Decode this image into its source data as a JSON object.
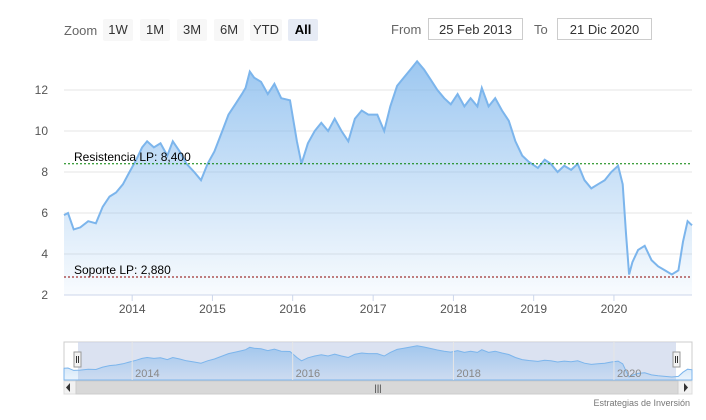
{
  "toolbar": {
    "zoom_label": "Zoom",
    "buttons": [
      {
        "label": "1W",
        "active": false
      },
      {
        "label": "1M",
        "active": false
      },
      {
        "label": "3M",
        "active": false
      },
      {
        "label": "6M",
        "active": false
      },
      {
        "label": "YTD",
        "active": false
      },
      {
        "label": "All",
        "active": true
      }
    ],
    "from_label": "From",
    "from_value": "25 Feb 2013",
    "to_label": "To",
    "to_value": "21 Dic 2020"
  },
  "chart_data": {
    "type": "area",
    "title": "",
    "xlabel": "",
    "ylabel": "",
    "x_range": [
      "2013-02-25",
      "2020-12-21"
    ],
    "ylim": [
      2,
      14
    ],
    "y_ticks": [
      2,
      4,
      6,
      8,
      10,
      12
    ],
    "x_ticks": [
      "2014",
      "2015",
      "2016",
      "2017",
      "2018",
      "2019",
      "2020"
    ],
    "grid": "horizontal",
    "series": [
      {
        "color": "#7cb5ec",
        "points": [
          [
            "2013-02-25",
            5.9
          ],
          [
            "2013-03-15",
            6.0
          ],
          [
            "2013-04-10",
            5.2
          ],
          [
            "2013-05-10",
            5.3
          ],
          [
            "2013-06-15",
            5.6
          ],
          [
            "2013-07-20",
            5.5
          ],
          [
            "2013-08-20",
            6.3
          ],
          [
            "2013-09-20",
            6.8
          ],
          [
            "2013-10-20",
            7.0
          ],
          [
            "2013-11-20",
            7.4
          ],
          [
            "2013-12-20",
            8.0
          ],
          [
            "2014-01-20",
            8.6
          ],
          [
            "2014-02-15",
            9.2
          ],
          [
            "2014-03-10",
            9.5
          ],
          [
            "2014-04-10",
            9.2
          ],
          [
            "2014-05-10",
            9.4
          ],
          [
            "2014-06-10",
            8.8
          ],
          [
            "2014-07-05",
            9.5
          ],
          [
            "2014-08-05",
            9.0
          ],
          [
            "2014-09-05",
            8.4
          ],
          [
            "2014-10-10",
            8.0
          ],
          [
            "2014-11-10",
            7.6
          ],
          [
            "2014-12-10",
            8.4
          ],
          [
            "2015-01-10",
            9.0
          ],
          [
            "2015-02-15",
            10.0
          ],
          [
            "2015-03-15",
            10.8
          ],
          [
            "2015-04-15",
            11.3
          ],
          [
            "2015-05-15",
            11.8
          ],
          [
            "2015-06-01",
            12.1
          ],
          [
            "2015-06-20",
            12.9
          ],
          [
            "2015-07-10",
            12.6
          ],
          [
            "2015-08-10",
            12.4
          ],
          [
            "2015-09-10",
            11.8
          ],
          [
            "2015-10-10",
            12.3
          ],
          [
            "2015-11-10",
            11.6
          ],
          [
            "2015-12-20",
            11.5
          ],
          [
            "2016-01-20",
            9.5
          ],
          [
            "2016-02-10",
            8.4
          ],
          [
            "2016-03-10",
            9.4
          ],
          [
            "2016-04-10",
            10.0
          ],
          [
            "2016-05-10",
            10.4
          ],
          [
            "2016-06-10",
            10.0
          ],
          [
            "2016-07-10",
            10.6
          ],
          [
            "2016-08-10",
            10.0
          ],
          [
            "2016-09-10",
            9.5
          ],
          [
            "2016-10-10",
            10.6
          ],
          [
            "2016-11-10",
            11.0
          ],
          [
            "2016-12-10",
            10.8
          ],
          [
            "2017-01-20",
            10.8
          ],
          [
            "2017-02-20",
            10.0
          ],
          [
            "2017-03-20",
            11.2
          ],
          [
            "2017-04-20",
            12.2
          ],
          [
            "2017-05-20",
            12.6
          ],
          [
            "2017-06-20",
            13.0
          ],
          [
            "2017-07-20",
            13.4
          ],
          [
            "2017-08-20",
            13.0
          ],
          [
            "2017-09-20",
            12.5
          ],
          [
            "2017-10-20",
            12.0
          ],
          [
            "2017-11-20",
            11.6
          ],
          [
            "2017-12-20",
            11.3
          ],
          [
            "2018-01-20",
            11.8
          ],
          [
            "2018-02-20",
            11.2
          ],
          [
            "2018-03-20",
            11.6
          ],
          [
            "2018-04-20",
            11.2
          ],
          [
            "2018-05-10",
            12.1
          ],
          [
            "2018-06-10",
            11.2
          ],
          [
            "2018-07-10",
            11.6
          ],
          [
            "2018-08-10",
            11.0
          ],
          [
            "2018-09-10",
            10.5
          ],
          [
            "2018-10-10",
            9.5
          ],
          [
            "2018-11-10",
            8.8
          ],
          [
            "2018-12-10",
            8.5
          ],
          [
            "2019-01-20",
            8.2
          ],
          [
            "2019-02-20",
            8.6
          ],
          [
            "2019-03-20",
            8.4
          ],
          [
            "2019-04-20",
            8.0
          ],
          [
            "2019-05-20",
            8.3
          ],
          [
            "2019-06-20",
            8.1
          ],
          [
            "2019-07-20",
            8.4
          ],
          [
            "2019-08-20",
            7.6
          ],
          [
            "2019-09-20",
            7.2
          ],
          [
            "2019-10-20",
            7.4
          ],
          [
            "2019-11-20",
            7.6
          ],
          [
            "2019-12-20",
            8.0
          ],
          [
            "2020-01-20",
            8.3
          ],
          [
            "2020-02-10",
            7.4
          ],
          [
            "2020-02-25",
            5.0
          ],
          [
            "2020-03-10",
            3.0
          ],
          [
            "2020-03-25",
            3.6
          ],
          [
            "2020-04-20",
            4.2
          ],
          [
            "2020-05-20",
            4.4
          ],
          [
            "2020-06-20",
            3.7
          ],
          [
            "2020-07-20",
            3.4
          ],
          [
            "2020-08-20",
            3.2
          ],
          [
            "2020-09-20",
            3.0
          ],
          [
            "2020-10-20",
            3.2
          ],
          [
            "2020-11-10",
            4.6
          ],
          [
            "2020-12-01",
            5.6
          ],
          [
            "2020-12-21",
            5.4
          ]
        ]
      }
    ],
    "plot_lines": [
      {
        "label": "Resistencia LP: 8,400",
        "value": 8.4,
        "color": "#008000"
      },
      {
        "label": "Soporte LP: 2,880",
        "value": 2.88,
        "color": "#8b0000"
      }
    ],
    "navigator": {
      "x_ticks": [
        "2014",
        "2016",
        "2018",
        "2020"
      ],
      "scrollbar_grip": "|||"
    },
    "credits": "Estrategias de Inversión"
  }
}
